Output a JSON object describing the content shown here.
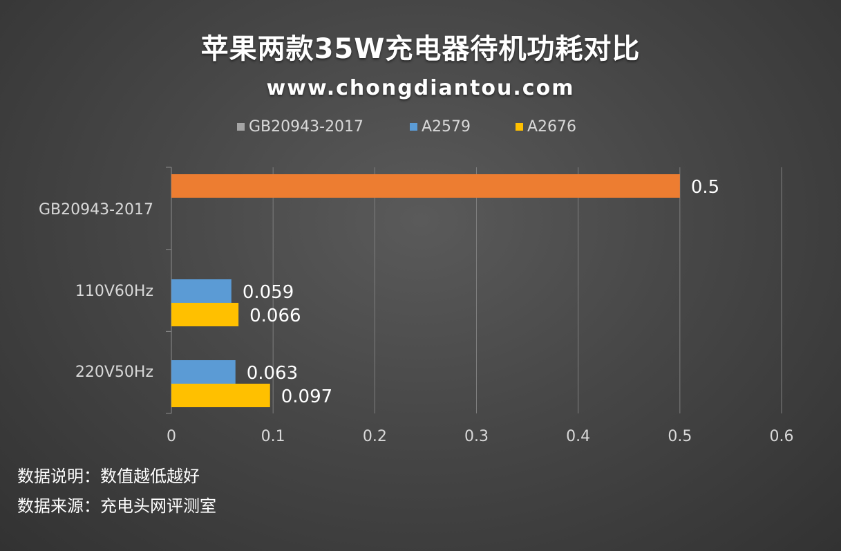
{
  "title": "苹果两款35W充电器待机功耗对比",
  "subtitle": "www.chongdiantou.com",
  "notes": [
    "数据说明：数值越低越好",
    "数据来源：充电头网评测室"
  ],
  "colors": {
    "GB20943-2017": "#a5a5a5",
    "A2579": "#5b9bd5",
    "A2676": "#ffc000",
    "highlight": "#ed7d31"
  },
  "chart_data": {
    "type": "bar",
    "orientation": "horizontal",
    "categories": [
      "GB20943-2017",
      "110V60Hz",
      "220V50Hz"
    ],
    "series": [
      {
        "name": "GB20943-2017",
        "values": [
          0.5,
          null,
          null
        ]
      },
      {
        "name": "A2579",
        "values": [
          null,
          0.059,
          0.063
        ]
      },
      {
        "name": "A2676",
        "values": [
          null,
          0.066,
          0.097
        ]
      }
    ],
    "data_labels": [
      "0.5",
      "0.059",
      "0.066",
      "0.063",
      "0.097"
    ],
    "xlim": [
      0,
      0.6
    ],
    "x_ticks": [
      "0",
      "0.1",
      "0.2",
      "0.3",
      "0.4",
      "0.5",
      "0.6"
    ],
    "grid": true,
    "legend": "top"
  }
}
